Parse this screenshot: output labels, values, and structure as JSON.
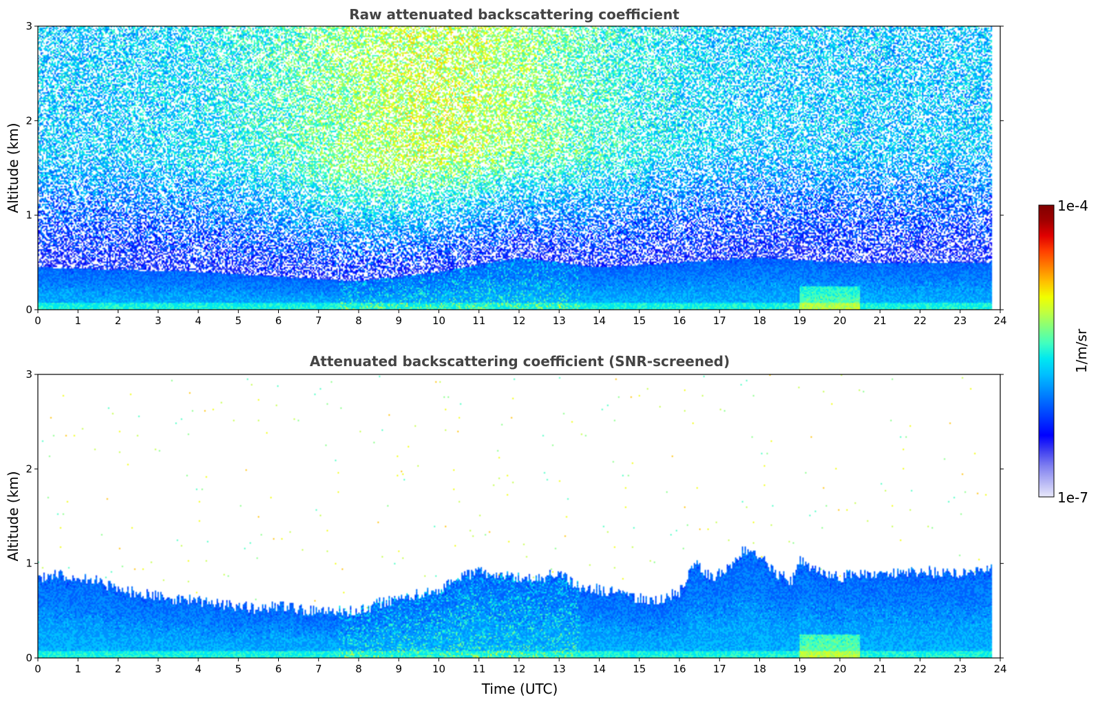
{
  "chart_data": [
    {
      "type": "heatmap",
      "title": "Raw attenuated backscattering coefficient",
      "xlabel": "",
      "ylabel": "Altitude (km)",
      "xlim": [
        0,
        24
      ],
      "ylim": [
        0,
        3
      ],
      "xticks": [
        "0",
        "1",
        "2",
        "3",
        "4",
        "5",
        "6",
        "7",
        "8",
        "9",
        "10",
        "11",
        "12",
        "13",
        "14",
        "15",
        "16",
        "17",
        "18",
        "19",
        "20",
        "21",
        "22",
        "23",
        "24"
      ],
      "yticks": [
        "0",
        "1",
        "2",
        "3"
      ],
      "data_extent_hours": [
        0,
        23.8
      ],
      "colorscale": "jet",
      "noise": "dense speckle of valid pixels up to 3 km",
      "base_layer_top_km": [
        [
          0,
          0.45
        ],
        [
          2,
          0.42
        ],
        [
          4,
          0.4
        ],
        [
          6,
          0.35
        ],
        [
          8,
          0.3
        ],
        [
          10,
          0.4
        ],
        [
          12,
          0.55
        ],
        [
          14,
          0.45
        ],
        [
          16,
          0.5
        ],
        [
          18,
          0.55
        ],
        [
          20,
          0.5
        ],
        [
          22,
          0.5
        ],
        [
          23.8,
          0.5
        ]
      ]
    },
    {
      "type": "heatmap",
      "title": "Attenuated backscattering coefficient (SNR-screened)",
      "xlabel": "Time (UTC)",
      "ylabel": "Altitude (km)",
      "xlim": [
        0,
        24
      ],
      "ylim": [
        0,
        3
      ],
      "xticks": [
        "0",
        "1",
        "2",
        "3",
        "4",
        "5",
        "6",
        "7",
        "8",
        "9",
        "10",
        "11",
        "12",
        "13",
        "14",
        "15",
        "16",
        "17",
        "18",
        "19",
        "20",
        "21",
        "22",
        "23",
        "24"
      ],
      "yticks": [
        "0",
        "1",
        "2",
        "3"
      ],
      "data_extent_hours": [
        0,
        23.8
      ],
      "colorscale": "jet",
      "noise": "sparse isolated pixels above the boundary layer",
      "layer_top_km": [
        [
          0,
          0.85
        ],
        [
          0.5,
          0.88
        ],
        [
          1,
          0.85
        ],
        [
          1.5,
          0.82
        ],
        [
          2,
          0.72
        ],
        [
          2.5,
          0.68
        ],
        [
          3,
          0.66
        ],
        [
          3.5,
          0.62
        ],
        [
          4,
          0.6
        ],
        [
          4.5,
          0.58
        ],
        [
          5,
          0.55
        ],
        [
          5.5,
          0.52
        ],
        [
          6,
          0.55
        ],
        [
          6.5,
          0.52
        ],
        [
          7,
          0.5
        ],
        [
          7.5,
          0.5
        ],
        [
          8,
          0.5
        ],
        [
          8.5,
          0.58
        ],
        [
          9,
          0.62
        ],
        [
          9.5,
          0.68
        ],
        [
          10,
          0.72
        ],
        [
          10.5,
          0.85
        ],
        [
          11,
          0.92
        ],
        [
          11.5,
          0.88
        ],
        [
          12,
          0.85
        ],
        [
          12.5,
          0.85
        ],
        [
          13,
          0.9
        ],
        [
          13.5,
          0.75
        ],
        [
          14,
          0.72
        ],
        [
          14.5,
          0.68
        ],
        [
          15,
          0.62
        ],
        [
          15.5,
          0.62
        ],
        [
          16,
          0.7
        ],
        [
          16.4,
          1.0
        ],
        [
          16.8,
          0.85
        ],
        [
          17.2,
          0.95
        ],
        [
          17.6,
          1.15
        ],
        [
          18,
          1.1
        ],
        [
          18.4,
          0.9
        ],
        [
          18.8,
          0.82
        ],
        [
          19,
          1.05
        ],
        [
          19.5,
          0.9
        ],
        [
          20,
          0.85
        ],
        [
          20.5,
          0.9
        ],
        [
          21,
          0.88
        ],
        [
          21.5,
          0.9
        ],
        [
          22,
          0.92
        ],
        [
          22.5,
          0.9
        ],
        [
          23,
          0.9
        ],
        [
          23.8,
          0.95
        ]
      ]
    }
  ],
  "colorbar": {
    "max_label": "1e-4",
    "min_label": "1e-7",
    "unit_label": "1/m/sr",
    "scale": "log",
    "range": [
      1e-07,
      0.0001
    ],
    "colors": [
      "#e8e8fa",
      "#b4b4f4",
      "#8080f0",
      "#4040f0",
      "#0000ff",
      "#0030ff",
      "#0060ff",
      "#0090ff",
      "#00c0ff",
      "#00e8f0",
      "#40ffc0",
      "#80ff80",
      "#c0ff40",
      "#f0ff00",
      "#ffc000",
      "#ff8000",
      "#ff4000",
      "#e00000",
      "#a00000",
      "#800000"
    ]
  }
}
